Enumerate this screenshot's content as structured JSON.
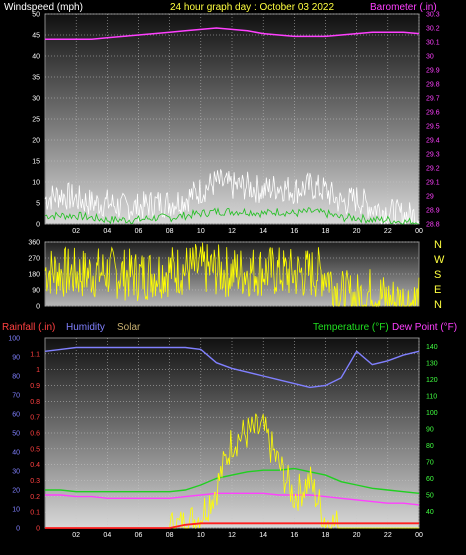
{
  "header": {
    "left": "Windspeed (mph)",
    "center": "24 hour graph day : October 03 2022",
    "right": "Barometer (.in)"
  },
  "bottom_labels": {
    "rain": "Rainfall (.in)",
    "humidity": "Humidity",
    "solar": "Solar",
    "temperature": "Temperature (°F)",
    "dewpoint": "Dew Point (°F)"
  },
  "direction_labels": [
    "N",
    "W",
    "S",
    "E",
    "N"
  ],
  "colors": {
    "wind_avg": "#20c020",
    "wind_gust": "#ffffff",
    "barometer": "#ff40ff",
    "direction": "#ffff00",
    "rain": "#ff2020",
    "humidity": "#8080ff",
    "solar": "#ffff00",
    "temperature": "#20d020",
    "dewpoint": "#ff40ff",
    "grid": "#c8c8c8"
  },
  "chart_data": [
    {
      "type": "line",
      "name": "wind-chart",
      "x_tick_labels": [
        "02",
        "04",
        "06",
        "08",
        "10",
        "12",
        "14",
        "16",
        "18",
        "20",
        "22",
        "00"
      ],
      "y_left": {
        "label": "Windspeed (mph)",
        "ylim": [
          0,
          50
        ],
        "ticks": [
          "0",
          "5",
          "10",
          "15",
          "20",
          "25",
          "30",
          "35",
          "40",
          "45",
          "50"
        ]
      },
      "y_right": {
        "label": "Barometer (.in)",
        "ylim": [
          28.8,
          30.3
        ],
        "ticks": [
          "28.8",
          "28.9",
          "29",
          "29.1",
          "29.2",
          "29.3",
          "29.4",
          "29.5",
          "29.6",
          "29.7",
          "29.8",
          "29.9",
          "30",
          "30.1",
          "30.2",
          "30.3"
        ]
      },
      "x_hours": [
        0,
        1,
        2,
        3,
        4,
        5,
        6,
        7,
        8,
        9,
        10,
        11,
        12,
        13,
        14,
        15,
        16,
        17,
        18,
        19,
        20,
        21,
        22,
        23,
        24
      ],
      "series": [
        {
          "key": "barometer",
          "axis": "right",
          "values": [
            30.12,
            30.12,
            30.12,
            30.12,
            30.13,
            30.14,
            30.15,
            30.16,
            30.17,
            30.18,
            30.19,
            30.2,
            30.19,
            30.18,
            30.16,
            30.15,
            30.14,
            30.14,
            30.14,
            30.15,
            30.16,
            30.17,
            30.17,
            30.17,
            30.16
          ]
        },
        {
          "key": "wind_gust",
          "axis": "left",
          "values": [
            6,
            7,
            6,
            5,
            5,
            4,
            4,
            5,
            5,
            6,
            8,
            10,
            9,
            9,
            8,
            9,
            8,
            9,
            8,
            5,
            6,
            4,
            3,
            2,
            2
          ]
        },
        {
          "key": "wind_avg",
          "axis": "left",
          "values": [
            2,
            2,
            2,
            1.5,
            1,
            1,
            1,
            1.5,
            1.5,
            2,
            2.5,
            3,
            3,
            3,
            2.5,
            3,
            2.5,
            3,
            2.5,
            1.5,
            1.5,
            1,
            1,
            0.5,
            0.5
          ]
        }
      ]
    },
    {
      "type": "line",
      "name": "direction-chart",
      "y_left": {
        "ylim": [
          0,
          360
        ],
        "ticks": [
          "0",
          "90",
          "180",
          "270",
          "360"
        ]
      },
      "x_hours": [
        0,
        2,
        4,
        6,
        8,
        10,
        12,
        14,
        16,
        18,
        19,
        20,
        21,
        22,
        23,
        24
      ],
      "series": [
        {
          "key": "direction",
          "axis": "left",
          "values": [
            200,
            180,
            190,
            170,
            200,
            210,
            190,
            200,
            180,
            190,
            60,
            40,
            80,
            30,
            20,
            20
          ]
        }
      ]
    },
    {
      "type": "line",
      "name": "weather-chart",
      "x_tick_labels": [
        "02",
        "04",
        "06",
        "08",
        "10",
        "12",
        "14",
        "16",
        "18",
        "20",
        "22",
        "00"
      ],
      "y_left": {
        "label": "Rainfall (.in)",
        "ylim": [
          0,
          1.2
        ],
        "ticks": [
          "0",
          "0.1",
          "0.2",
          "0.3",
          "0.4",
          "0.5",
          "0.6",
          "0.7",
          "0.8",
          "0.9",
          "1",
          "1.1"
        ]
      },
      "y_left2": {
        "label": "Humidity",
        "ylim": [
          0,
          100
        ],
        "ticks": [
          "0",
          "10",
          "20",
          "30",
          "40",
          "50",
          "60",
          "70",
          "80",
          "90",
          "100"
        ]
      },
      "y_right": {
        "label": "Temperature (°F)",
        "ylim": [
          30,
          145
        ],
        "ticks": [
          "40",
          "50",
          "60",
          "70",
          "80",
          "90",
          "100",
          "110",
          "120",
          "130",
          "140"
        ]
      },
      "x_hours": [
        0,
        1,
        2,
        3,
        4,
        5,
        6,
        7,
        8,
        9,
        10,
        11,
        12,
        13,
        14,
        15,
        16,
        17,
        18,
        19,
        20,
        21,
        22,
        23,
        24
      ],
      "series": [
        {
          "key": "humidity",
          "axis": "left2",
          "values": [
            93,
            94,
            95,
            95,
            95,
            95,
            95,
            95,
            95,
            95,
            94,
            87,
            84,
            82,
            80,
            78,
            76,
            74,
            75,
            79,
            93,
            86,
            88,
            91,
            93
          ]
        },
        {
          "key": "temperature",
          "axis": "right",
          "values": [
            53,
            53,
            52,
            52,
            52,
            52,
            52,
            52,
            52,
            53,
            56,
            60,
            62,
            64,
            65,
            65,
            66,
            64,
            62,
            58,
            56,
            54,
            53,
            52,
            51
          ]
        },
        {
          "key": "dewpoint",
          "axis": "right",
          "values": [
            50,
            50,
            49,
            49,
            48,
            48,
            48,
            48,
            48,
            49,
            50,
            51,
            51,
            51,
            51,
            50,
            50,
            50,
            49,
            48,
            47,
            46,
            45,
            45,
            44
          ]
        },
        {
          "key": "solar",
          "axis": "left",
          "values": [
            0,
            0,
            0,
            0,
            0,
            0,
            0,
            0,
            0,
            0.02,
            0.08,
            0.25,
            0.55,
            0.6,
            0.62,
            0.4,
            0.2,
            0.3,
            0.05,
            0,
            0,
            0,
            0,
            0,
            0
          ]
        },
        {
          "key": "rain",
          "axis": "left",
          "values": [
            0,
            0,
            0,
            0,
            0,
            0,
            0,
            0,
            0,
            0.02,
            0.03,
            0.03,
            0.03,
            0.03,
            0.03,
            0.03,
            0.03,
            0.03,
            0.03,
            0.03,
            0.03,
            0.03,
            0.03,
            0.03,
            0.03
          ]
        }
      ]
    }
  ]
}
